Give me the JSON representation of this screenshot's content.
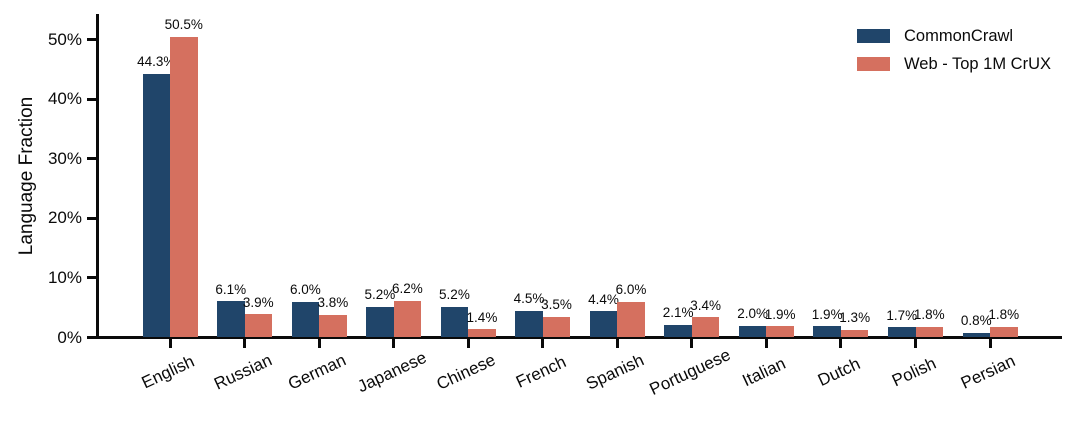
{
  "chart_data": {
    "type": "bar",
    "title": "",
    "xlabel": "",
    "ylabel": "Language Fraction",
    "categories": [
      "English",
      "Russian",
      "German",
      "Japanese",
      "Chinese",
      "French",
      "Spanish",
      "Portuguese",
      "Italian",
      "Dutch",
      "Polish",
      "Persian"
    ],
    "series": [
      {
        "name": "CommonCrawl",
        "color": "#20456A",
        "values": [
          44.3,
          6.1,
          6.0,
          5.2,
          5.2,
          4.5,
          4.4,
          2.1,
          2.0,
          1.9,
          1.7,
          0.8
        ]
      },
      {
        "name": "Web - Top 1M CrUX",
        "color": "#D5705F",
        "values": [
          50.5,
          3.9,
          3.8,
          6.2,
          1.4,
          3.5,
          6.0,
          3.4,
          1.9,
          1.3,
          1.8,
          1.8
        ]
      }
    ],
    "y_ticks": [
      {
        "value": 0,
        "label": "0%"
      },
      {
        "value": 10,
        "label": "10%"
      },
      {
        "value": 20,
        "label": "20%"
      },
      {
        "value": 30,
        "label": "30%"
      },
      {
        "value": 40,
        "label": "40%"
      },
      {
        "value": 50,
        "label": "50%"
      }
    ],
    "ylim": [
      0,
      54
    ],
    "bar_value_labels": true,
    "value_label_decimals": 1,
    "value_label_suffix": "%",
    "legend": {
      "position": "upper-right"
    },
    "grid": false,
    "axis_color": "#0a0a0a",
    "text_color": "#0a0a0a"
  }
}
